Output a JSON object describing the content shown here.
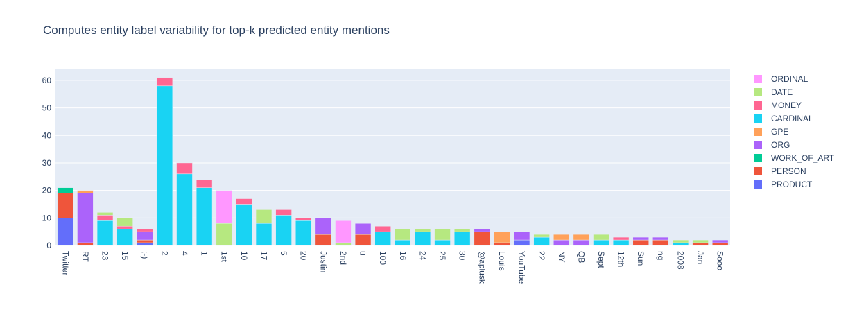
{
  "chart_data": {
    "type": "bar",
    "stacked": true,
    "title": "Computes entity label variability for top-k predicted entity mentions",
    "xlabel": "",
    "ylabel": "",
    "ylim": [
      0,
      64
    ],
    "yticks": [
      0,
      10,
      20,
      30,
      40,
      50,
      60
    ],
    "grid": true,
    "legend_position": "right",
    "categories": [
      "Twitter",
      "RT",
      "23",
      "15",
      ";-)",
      "2",
      "4",
      "1",
      "1st",
      "10",
      "17",
      "5",
      "20",
      "Justin",
      "2nd",
      "u",
      "100",
      "16",
      "24",
      "25",
      "30",
      "@aplusk",
      "Louis",
      "YouTube",
      "22",
      "NY",
      "QB",
      "Sept",
      "12th",
      "Sun",
      "ng",
      "2008",
      "Jan",
      "Sooo"
    ],
    "series": [
      {
        "name": "PRODUCT",
        "color": "#636efa",
        "values": [
          10,
          0,
          0,
          0,
          1,
          0,
          0,
          0,
          0,
          0,
          0,
          0,
          0,
          0,
          0,
          0,
          0,
          0,
          0,
          0,
          0,
          0,
          0,
          2,
          0,
          0,
          0,
          0,
          0,
          0,
          0,
          0,
          0,
          0
        ]
      },
      {
        "name": "PERSON",
        "color": "#ef553b",
        "values": [
          9,
          1,
          0,
          0,
          1,
          0,
          0,
          0,
          0,
          0,
          0,
          0,
          0,
          4,
          0,
          4,
          0,
          0,
          0,
          0,
          0,
          5,
          1,
          0,
          0,
          0,
          0,
          0,
          0,
          2,
          2,
          0,
          1,
          1
        ]
      },
      {
        "name": "WORK_OF_ART",
        "color": "#00cc96",
        "values": [
          2,
          0,
          0,
          0,
          0,
          0,
          0,
          0,
          0,
          0,
          0,
          0,
          0,
          0,
          0,
          0,
          0,
          0,
          0,
          0,
          0,
          0,
          0,
          0,
          0,
          0,
          0,
          0,
          0,
          0,
          0,
          0,
          0,
          0
        ]
      },
      {
        "name": "ORG",
        "color": "#ab63fa",
        "values": [
          0,
          18,
          0,
          0,
          3,
          0,
          0,
          0,
          0,
          0,
          0,
          0,
          0,
          6,
          0,
          4,
          0,
          0,
          0,
          0,
          0,
          1,
          0,
          3,
          0,
          2,
          2,
          0,
          0,
          1,
          1,
          0,
          0,
          1
        ]
      },
      {
        "name": "GPE",
        "color": "#ffa15a",
        "values": [
          0,
          1,
          0,
          0,
          0,
          0,
          0,
          0,
          0,
          0,
          0,
          0,
          0,
          0,
          0,
          0,
          0,
          0,
          0,
          0,
          0,
          0,
          4,
          0,
          0,
          2,
          2,
          0,
          0,
          0,
          0,
          0,
          0,
          0
        ]
      },
      {
        "name": "CARDINAL",
        "color": "#19d3f3",
        "values": [
          0,
          0,
          9,
          6,
          0,
          58,
          26,
          21,
          0,
          15,
          8,
          11,
          9,
          0,
          0,
          0,
          5,
          2,
          5,
          2,
          5,
          0,
          0,
          0,
          3,
          0,
          0,
          2,
          2,
          0,
          0,
          1,
          0,
          0
        ]
      },
      {
        "name": "MONEY",
        "color": "#ff6692",
        "values": [
          0,
          0,
          2,
          1,
          1,
          3,
          4,
          3,
          0,
          2,
          0,
          2,
          1,
          0,
          0,
          0,
          2,
          0,
          0,
          0,
          0,
          0,
          0,
          0,
          0,
          0,
          0,
          0,
          1,
          0,
          0,
          0,
          0,
          0
        ]
      },
      {
        "name": "DATE",
        "color": "#b6e880",
        "values": [
          0,
          0,
          1,
          3,
          0,
          0,
          0,
          0,
          8,
          0,
          5,
          0,
          0,
          0,
          1,
          0,
          0,
          4,
          1,
          4,
          1,
          0,
          0,
          0,
          1,
          0,
          0,
          2,
          0,
          0,
          0,
          1,
          1,
          0
        ]
      },
      {
        "name": "ORDINAL",
        "color": "#ff97ff",
        "values": [
          0,
          0,
          0,
          0,
          0,
          0,
          0,
          0,
          12,
          0,
          0,
          0,
          0,
          0,
          8,
          0,
          0,
          0,
          0,
          0,
          0,
          0,
          0,
          0,
          0,
          0,
          0,
          0,
          0,
          0,
          0,
          0,
          0,
          0
        ]
      }
    ]
  }
}
